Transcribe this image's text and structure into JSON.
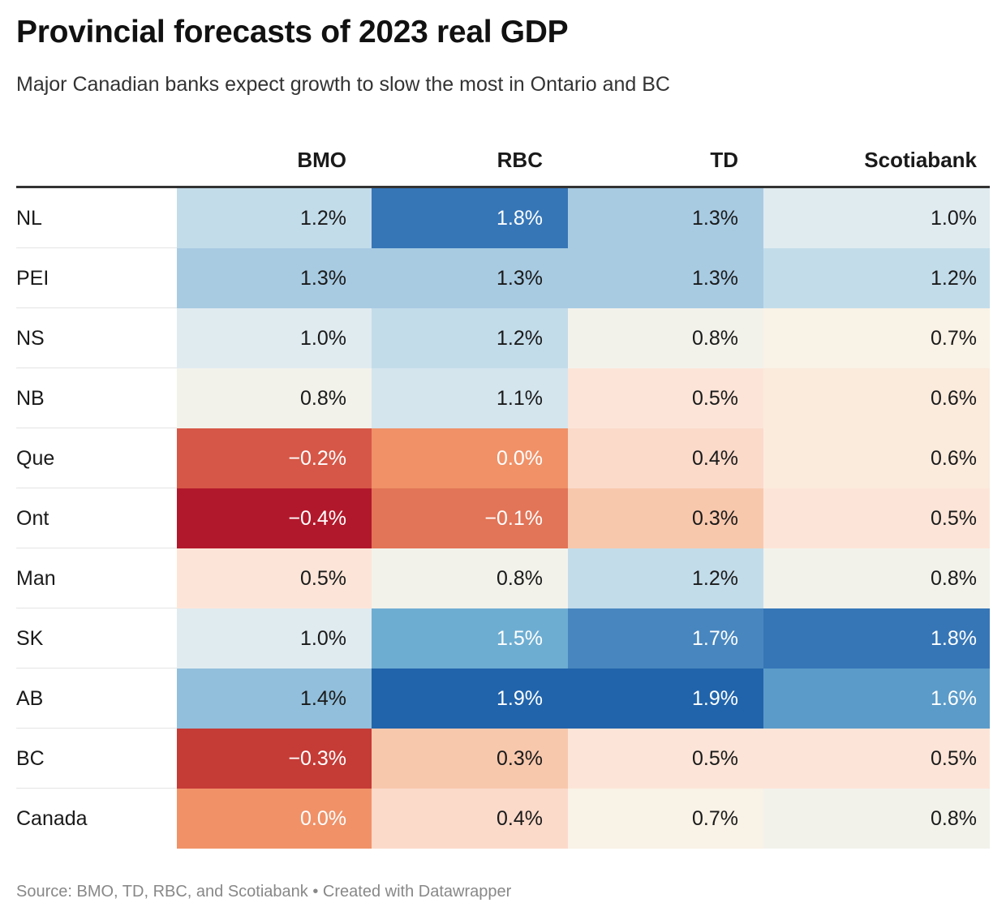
{
  "title": "Provincial forecasts of 2023 real GDP",
  "subtitle": "Major Canadian banks expect growth to slow the most in Ontario and BC",
  "footer": {
    "source": "Source: BMO, TD, RBC, and Scotiabank",
    "separator": " • ",
    "credit": "Created with Datawrapper"
  },
  "colors": {
    "scale": {
      "-0.4": "#b2182b",
      "-0.3": "#c53b36",
      "-0.2": "#d65747",
      "-0.1": "#e27457",
      "0.0": "#f09168",
      "0.3": "#f8c8ad",
      "0.4": "#fbdaca",
      "0.5": "#fce5d8",
      "0.6": "#fbebdd",
      "0.7": "#f9f2e6",
      "0.8": "#f2f2eb",
      "1.0": "#e0ebf0",
      "1.1": "#d4e5ee",
      "1.2": "#c3dcea",
      "1.3": "#a8cbe2",
      "1.4": "#92bfdb",
      "1.5": "#6eadd2",
      "1.6": "#5b9bc9",
      "1.7": "#4886bf",
      "1.8": "#3676b7",
      "1.9": "#2164ab"
    },
    "text_dark": "#1a1a1a",
    "text_light": "#ffffff"
  },
  "chart_data": {
    "type": "table",
    "title": "Provincial forecasts of 2023 real GDP",
    "subtitle": "Major Canadian banks expect growth to slow the most in Ontario and BC",
    "unit": "%",
    "columns": [
      "BMO",
      "RBC",
      "TD",
      "Scotiabank"
    ],
    "rows": [
      {
        "label": "NL",
        "values": [
          1.2,
          1.8,
          1.3,
          1.0
        ],
        "display": [
          "1.2%",
          "1.8%",
          "1.3%",
          "1.0%"
        ]
      },
      {
        "label": "PEI",
        "values": [
          1.3,
          1.3,
          1.3,
          1.2
        ],
        "display": [
          "1.3%",
          "1.3%",
          "1.3%",
          "1.2%"
        ]
      },
      {
        "label": "NS",
        "values": [
          1.0,
          1.2,
          0.8,
          0.7
        ],
        "display": [
          "1.0%",
          "1.2%",
          "0.8%",
          "0.7%"
        ]
      },
      {
        "label": "NB",
        "values": [
          0.8,
          1.1,
          0.5,
          0.6
        ],
        "display": [
          "0.8%",
          "1.1%",
          "0.5%",
          "0.6%"
        ]
      },
      {
        "label": "Que",
        "values": [
          -0.2,
          0.0,
          0.4,
          0.6
        ],
        "display": [
          "−0.2%",
          "0.0%",
          "0.4%",
          "0.6%"
        ]
      },
      {
        "label": "Ont",
        "values": [
          -0.4,
          -0.1,
          0.3,
          0.5
        ],
        "display": [
          "−0.4%",
          "−0.1%",
          "0.3%",
          "0.5%"
        ]
      },
      {
        "label": "Man",
        "values": [
          0.5,
          0.8,
          1.2,
          0.8
        ],
        "display": [
          "0.5%",
          "0.8%",
          "1.2%",
          "0.8%"
        ]
      },
      {
        "label": "SK",
        "values": [
          1.0,
          1.5,
          1.7,
          1.8
        ],
        "display": [
          "1.0%",
          "1.5%",
          "1.7%",
          "1.8%"
        ]
      },
      {
        "label": "AB",
        "values": [
          1.4,
          1.9,
          1.9,
          1.6
        ],
        "display": [
          "1.4%",
          "1.9%",
          "1.9%",
          "1.6%"
        ]
      },
      {
        "label": "BC",
        "values": [
          -0.3,
          0.3,
          0.5,
          0.5
        ],
        "display": [
          "−0.3%",
          "0.3%",
          "0.5%",
          "0.5%"
        ]
      },
      {
        "label": "Canada",
        "values": [
          0.0,
          0.4,
          0.7,
          0.8
        ],
        "display": [
          "0.0%",
          "0.4%",
          "0.7%",
          "0.8%"
        ]
      }
    ]
  }
}
